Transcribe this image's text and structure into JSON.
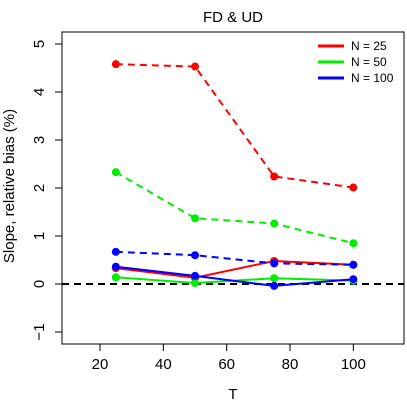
{
  "chart_data": {
    "type": "line",
    "title": "FD  &  UD",
    "xlabel": "T",
    "ylabel": "Slope, relative bias (%)",
    "xlim": [
      8,
      116
    ],
    "ylim": [
      -1.25,
      5.25
    ],
    "x_ticks": [
      20,
      40,
      60,
      80,
      100
    ],
    "y_ticks": [
      -1,
      0,
      1,
      2,
      3,
      4,
      5
    ],
    "x_tick_labels": [
      "20",
      "40",
      "60",
      "80",
      "100"
    ],
    "y_tick_labels": [
      "−1",
      "0",
      "1",
      "2",
      "3",
      "4",
      "5"
    ],
    "x": [
      25,
      50,
      75,
      100
    ],
    "reference_line": {
      "y": 0,
      "style": "dashed",
      "color": "#000000"
    },
    "legend": {
      "position": "top-right",
      "entries": [
        {
          "label": "N = 25",
          "color": "#ff0000"
        },
        {
          "label": "N = 50",
          "color": "#00ee00"
        },
        {
          "label": "N = 100",
          "color": "#0000ff"
        }
      ]
    },
    "series": [
      {
        "name": "N = 25",
        "estimator": "FD",
        "style": "dashed",
        "color": "#ff0000",
        "values": [
          4.58,
          4.53,
          2.24,
          2.01
        ]
      },
      {
        "name": "N = 25",
        "estimator": "UD",
        "style": "solid",
        "color": "#ff0000",
        "values": [
          0.33,
          0.13,
          0.48,
          0.4
        ]
      },
      {
        "name": "N = 50",
        "estimator": "FD",
        "style": "dashed",
        "color": "#00ee00",
        "values": [
          2.33,
          1.37,
          1.26,
          0.85
        ]
      },
      {
        "name": "N = 50",
        "estimator": "UD",
        "style": "solid",
        "color": "#00ee00",
        "values": [
          0.14,
          0.02,
          0.12,
          0.07
        ]
      },
      {
        "name": "N = 100",
        "estimator": "FD",
        "style": "dashed",
        "color": "#0000ff",
        "values": [
          0.67,
          0.6,
          0.43,
          0.4
        ]
      },
      {
        "name": "N = 100",
        "estimator": "UD",
        "style": "solid",
        "color": "#0000ff",
        "values": [
          0.36,
          0.17,
          -0.04,
          0.1
        ]
      }
    ]
  }
}
